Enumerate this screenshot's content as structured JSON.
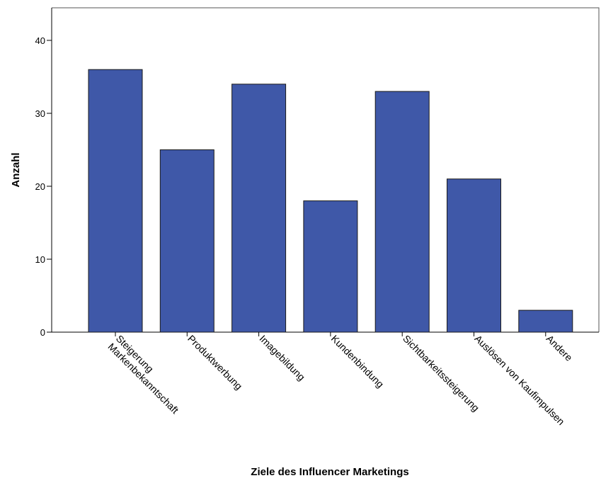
{
  "chart_data": {
    "type": "bar",
    "categories": [
      "Steigerung Markenbekanntschaft",
      "Produktwerbung",
      "Imagebildung",
      "Kundenbindung",
      "Sichtbarkeitssteigerung",
      "Auslösen von Kaufimpulsen",
      "Andere"
    ],
    "category_label_lines": [
      [
        "Steigerung",
        "Markenbekanntschaft"
      ],
      [
        "Produktwerbung"
      ],
      [
        "Imagebildung"
      ],
      [
        "Kundenbindung"
      ],
      [
        "Sichtbarkeitssteigerung"
      ],
      [
        "Auslösen von Kaufimpulsen"
      ],
      [
        "Andere"
      ]
    ],
    "values": [
      36,
      25,
      34,
      18,
      33,
      21,
      3
    ],
    "xlabel": "Ziele des Influencer Marketings",
    "ylabel": "Anzahl",
    "ylim": [
      0,
      44
    ],
    "yticks": [
      0,
      10,
      20,
      30,
      40
    ],
    "grid": false,
    "bar_color": "#3f58a8",
    "bar_stroke": "#1a1a1a",
    "axis_color": "#000000"
  }
}
